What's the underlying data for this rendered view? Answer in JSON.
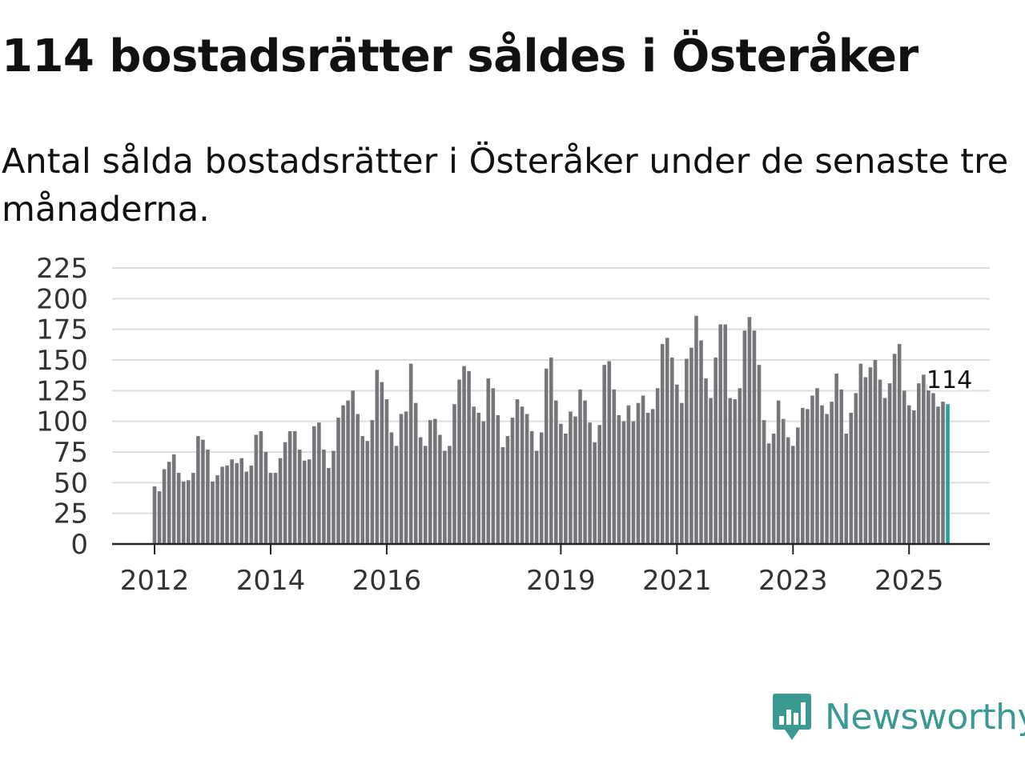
{
  "title": "114 bostadsrätter såldes i Österåker",
  "subtitle": "Antal sålda bostadsrätter i Österåker under de senaste tre månaderna.",
  "brand": {
    "name": "Newsworthy",
    "logo_icon": "newsworthy-logo-icon"
  },
  "colors": {
    "bar": "#76757a",
    "highlight": "#22a39c",
    "grid": "#dddddd",
    "axis": "#222222",
    "brand": "#3a9a92"
  },
  "chart_data": {
    "type": "bar",
    "title": "114 bostadsrätter såldes i Österåker",
    "xlabel": "",
    "ylabel": "",
    "ylim": [
      0,
      225
    ],
    "y_ticks": [
      0,
      25,
      50,
      75,
      100,
      125,
      150,
      175,
      200,
      225
    ],
    "grid": true,
    "x_ticks": [
      {
        "label": "2012",
        "index": 0
      },
      {
        "label": "2014",
        "index": 24
      },
      {
        "label": "2016",
        "index": 48
      },
      {
        "label": "2019",
        "index": 84
      },
      {
        "label": "2021",
        "index": 108
      },
      {
        "label": "2023",
        "index": 132
      },
      {
        "label": "2025",
        "index": 156
      }
    ],
    "annotation": {
      "label": "114",
      "index": 164
    },
    "highlight_index": 164,
    "values": [
      47,
      43,
      61,
      67,
      73,
      58,
      51,
      52,
      58,
      88,
      85,
      77,
      51,
      56,
      63,
      64,
      69,
      66,
      70,
      59,
      64,
      89,
      92,
      75,
      58,
      58,
      70,
      83,
      92,
      92,
      77,
      68,
      69,
      96,
      99,
      77,
      62,
      76,
      103,
      113,
      117,
      125,
      106,
      88,
      84,
      101,
      142,
      132,
      118,
      91,
      80,
      106,
      108,
      147,
      115,
      87,
      80,
      101,
      102,
      89,
      76,
      80,
      114,
      134,
      145,
      141,
      112,
      107,
      100,
      135,
      127,
      105,
      79,
      88,
      103,
      118,
      112,
      106,
      92,
      76,
      91,
      143,
      152,
      117,
      98,
      90,
      108,
      104,
      126,
      117,
      99,
      83,
      97,
      146,
      149,
      126,
      105,
      100,
      113,
      100,
      115,
      121,
      107,
      110,
      127,
      163,
      168,
      152,
      130,
      115,
      151,
      160,
      186,
      166,
      135,
      119,
      152,
      179,
      179,
      119,
      118,
      127,
      174,
      185,
      174,
      146,
      101,
      82,
      90,
      117,
      102,
      87,
      80,
      95,
      111,
      110,
      121,
      127,
      113,
      106,
      116,
      139,
      126,
      90,
      107,
      123,
      147,
      136,
      144,
      150,
      134,
      119,
      131,
      155,
      163,
      125,
      113,
      109,
      131,
      138,
      130,
      123,
      112,
      116,
      114
    ]
  }
}
